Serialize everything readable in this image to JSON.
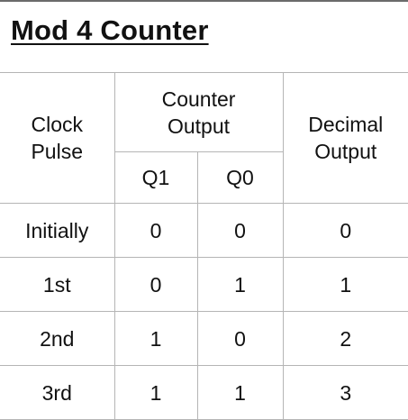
{
  "title": "Mod 4 Counter",
  "headers": {
    "clock_line1": "Clock",
    "clock_line2": "Pulse",
    "counter_line1": "Counter",
    "counter_line2": "Output",
    "decimal_line1": "Decimal",
    "decimal_line2": "Output",
    "q1": "Q1",
    "q0": "Q0"
  },
  "rows": [
    {
      "pulse": "Initially",
      "q1": "0",
      "q0": "0",
      "decimal": "0"
    },
    {
      "pulse": "1st",
      "q1": "0",
      "q0": "1",
      "decimal": "1"
    },
    {
      "pulse": "2nd",
      "q1": "1",
      "q0": "0",
      "decimal": "2"
    },
    {
      "pulse": "3rd",
      "q1": "1",
      "q0": "1",
      "decimal": "3"
    }
  ]
}
